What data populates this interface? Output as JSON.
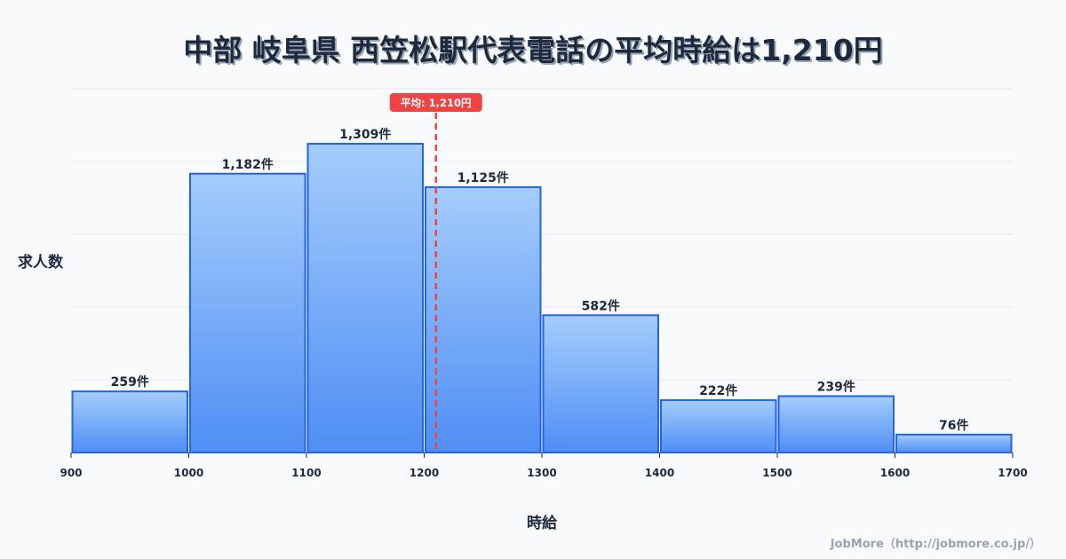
{
  "title": "中部 岐阜県 西笠松駅代表電話の平均時給は1,210円",
  "credit": "JobMore（http://jobmore.co.jp/）",
  "colors": {
    "background": "#f8fafc",
    "bar_top": "#a5cdfb",
    "bar_bottom": "#4f8ef5",
    "bar_border": "#2563eb",
    "mean_line": "#ef4444",
    "grid": "#e2e8f0",
    "text": "#1e293b"
  },
  "mean_badge": "平均: 1,210円",
  "chart_data": {
    "type": "bar",
    "title": "中部 岐阜県 西笠松駅代表電話の平均時給は1,210円",
    "xlabel": "時給",
    "ylabel": "求人数",
    "bins": [
      [
        900,
        1000
      ],
      [
        1000,
        1100
      ],
      [
        1100,
        1200
      ],
      [
        1200,
        1300
      ],
      [
        1300,
        1400
      ],
      [
        1400,
        1500
      ],
      [
        1500,
        1600
      ],
      [
        1600,
        1700
      ]
    ],
    "categories": [
      "900-1000",
      "1000-1100",
      "1100-1200",
      "1200-1300",
      "1300-1400",
      "1400-1500",
      "1500-1600",
      "1600-1700"
    ],
    "values": [
      259,
      1182,
      1309,
      1125,
      582,
      222,
      239,
      76
    ],
    "value_labels": [
      "259件",
      "1,182件",
      "1,309件",
      "1,125件",
      "582件",
      "222件",
      "239件",
      "76件"
    ],
    "x_ticks": [
      "900",
      "1000",
      "1100",
      "1200",
      "1300",
      "1400",
      "1500",
      "1600",
      "1700"
    ],
    "xlim": [
      900,
      1700
    ],
    "mean": 1210,
    "mean_label": "平均: 1,210円",
    "grid": true,
    "legend": null
  }
}
